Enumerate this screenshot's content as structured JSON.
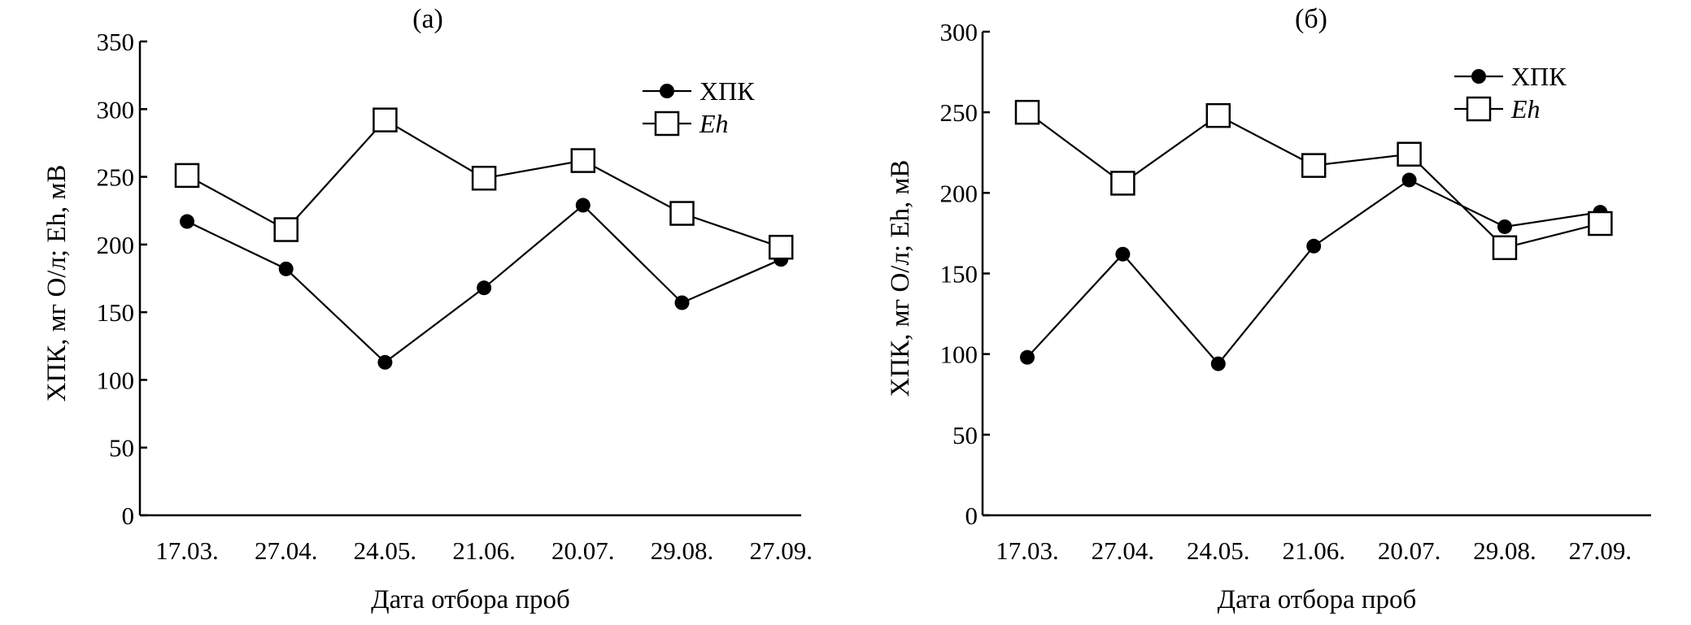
{
  "chart_data": [
    {
      "type": "line",
      "panel_label": "(а)",
      "categories": [
        "17.03.",
        "27.04.",
        "24.05.",
        "21.06.",
        "20.07.",
        "29.08.",
        "27.09."
      ],
      "series": [
        {
          "name": "ХПК",
          "marker": "filled-circle",
          "values": [
            217,
            182,
            113,
            168,
            229,
            157,
            189
          ]
        },
        {
          "name": "Eh",
          "marker": "open-square",
          "values": [
            251,
            211,
            292,
            249,
            262,
            223,
            198
          ]
        }
      ],
      "xlabel": "Дата отбора проб",
      "ylabel": "ХПК, мг О/л; Eh, мВ",
      "ylim": [
        0,
        350
      ],
      "yticks": [
        "0",
        "50",
        "100",
        "150",
        "200",
        "250",
        "300",
        "350"
      ],
      "legend_position": "top-right"
    },
    {
      "type": "line",
      "panel_label": "(б)",
      "categories": [
        "17.03.",
        "27.04.",
        "24.05.",
        "21.06.",
        "20.07.",
        "29.08.",
        "27.09."
      ],
      "series": [
        {
          "name": "ХПК",
          "marker": "filled-circle",
          "values": [
            98,
            162,
            94,
            167,
            208,
            179,
            188
          ]
        },
        {
          "name": "Eh",
          "marker": "open-square",
          "values": [
            250,
            206,
            248,
            217,
            224,
            166,
            181
          ]
        }
      ],
      "xlabel": "Дата отбора проб",
      "ylabel": "ХПК, мг О/л; Eh, мВ",
      "ylim": [
        0,
        300
      ],
      "yticks": [
        "0",
        "50",
        "100",
        "150",
        "200",
        "250",
        "300"
      ],
      "legend_position": "top-right"
    }
  ]
}
